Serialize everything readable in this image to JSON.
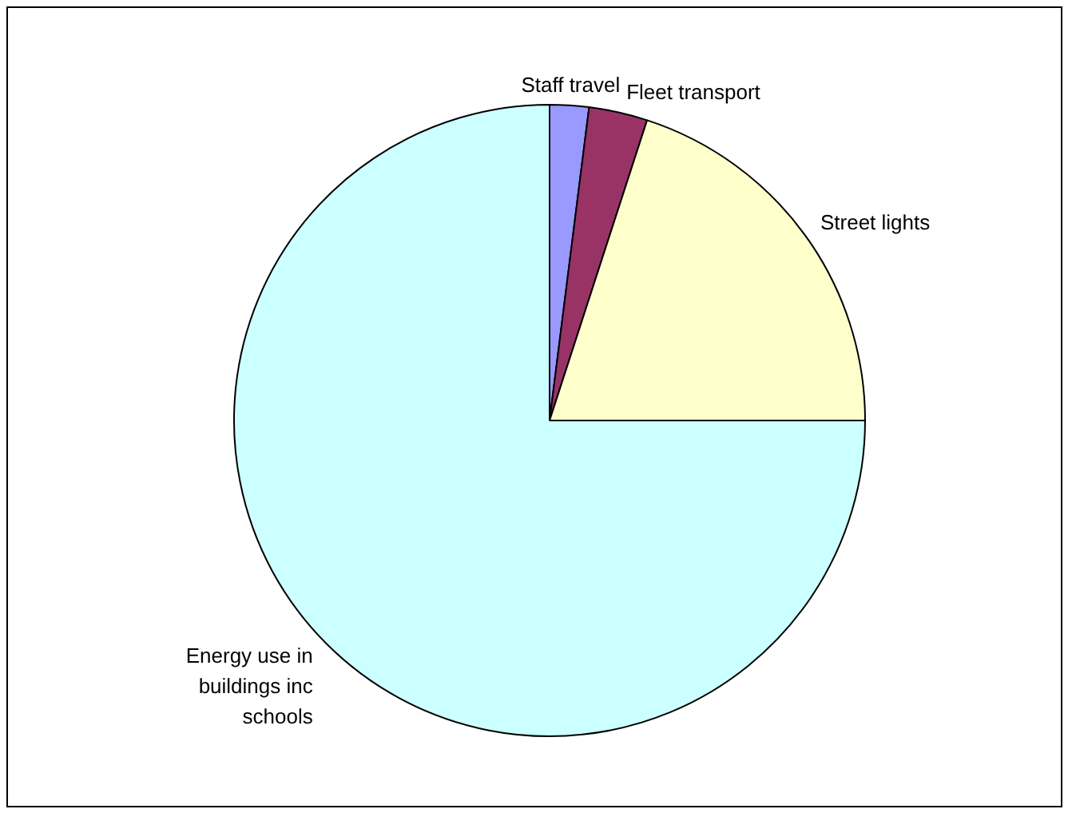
{
  "chart_data": {
    "type": "pie",
    "categories": [
      "Staff travel",
      "Fleet transport",
      "Street lights",
      "Energy use in buildings inc schools"
    ],
    "values": [
      2,
      3,
      20,
      75
    ],
    "colors": [
      "#9999ff",
      "#993366",
      "#ffffcc",
      "#ccffff"
    ]
  }
}
